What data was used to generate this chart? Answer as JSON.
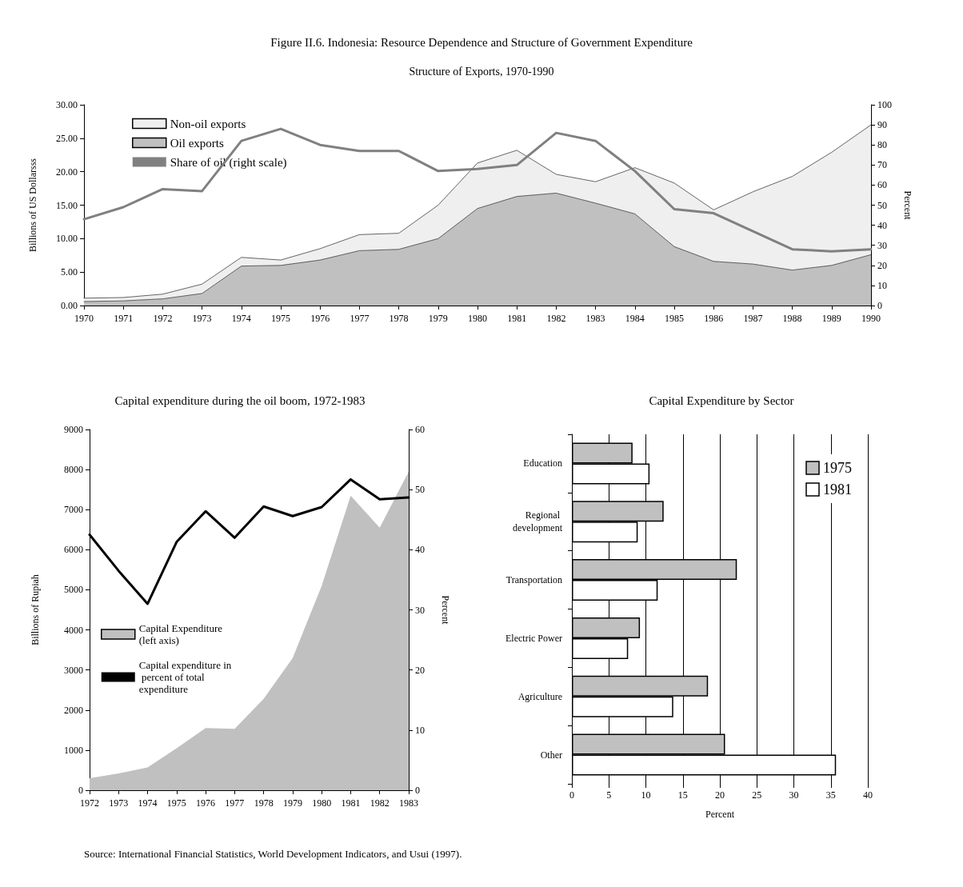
{
  "chart_data": [
    {
      "type": "area",
      "title": "Figure II.6. Indonesia: Resource Dependence and Structure of Government Expenditure",
      "subtitle": "Structure of Exports, 1970-1990",
      "ylabel": "Billions of US Dollarsss",
      "y2label": "Percent",
      "categories": [
        "1970",
        "1971",
        "1972",
        "1973",
        "1974",
        "1975",
        "1976",
        "1977",
        "1978",
        "1979",
        "1980",
        "1981",
        "1982",
        "1983",
        "1984",
        "1985",
        "1986",
        "1987",
        "1988",
        "1989",
        "1990"
      ],
      "stacked": true,
      "marker": "none",
      "legend": "top left",
      "ylim": [
        0,
        30
      ],
      "yticks": [
        {
          "value": 0,
          "label": "0.00"
        },
        {
          "value": 5,
          "label": "5.00"
        },
        {
          "value": 10,
          "label": "10.00"
        },
        {
          "value": 15,
          "label": "15.00"
        },
        {
          "value": 20,
          "label": "20.00"
        },
        {
          "value": 25,
          "label": "25.00"
        },
        {
          "value": 30,
          "label": "30.00"
        }
      ],
      "y2lim": [
        0,
        100
      ],
      "y2ticks": [
        0,
        10,
        20,
        30,
        40,
        50,
        60,
        70,
        80,
        90,
        100
      ],
      "series": [
        {
          "name": "Oil exports",
          "type": "area",
          "color": "#c0c0c0",
          "values": [
            0.6,
            0.7,
            1.0,
            1.8,
            5.9,
            6.0,
            6.8,
            8.2,
            8.4,
            10.0,
            14.5,
            16.3,
            16.8,
            15.3,
            13.7,
            8.8,
            6.6,
            6.2,
            5.3,
            6.0,
            7.6
          ]
        },
        {
          "name": "Non-oil exports",
          "type": "area",
          "color": "#efefef",
          "values": [
            0.5,
            0.5,
            0.7,
            1.4,
            1.3,
            0.8,
            1.7,
            2.4,
            2.4,
            5.0,
            6.8,
            6.9,
            2.8,
            3.2,
            6.9,
            9.5,
            7.7,
            10.8,
            14.0,
            16.9,
            19.4
          ]
        },
        {
          "name": "Share of oil (right scale)",
          "type": "line",
          "axis": "y2",
          "color": "#808080",
          "values": [
            43,
            49,
            58,
            57,
            82,
            88,
            80,
            77,
            77,
            67,
            68,
            70,
            86,
            82,
            67,
            48,
            46,
            37,
            28,
            27,
            28
          ]
        }
      ]
    },
    {
      "type": "area",
      "title": "Capital expenditure during the oil boom, 1972-1983",
      "ylabel": "Billions of Rupiah",
      "y2label": "Percent",
      "categories": [
        "1972",
        "1973",
        "1974",
        "1975",
        "1976",
        "1977",
        "1978",
        "1979",
        "1980",
        "1981",
        "1982",
        "1983"
      ],
      "marker": "none",
      "legend": "left",
      "ylim": [
        0,
        9000
      ],
      "yticks": [
        0,
        1000,
        2000,
        3000,
        4000,
        5000,
        6000,
        7000,
        8000,
        9000
      ],
      "y2lim": [
        0,
        60
      ],
      "y2ticks": [
        0,
        10,
        20,
        30,
        40,
        50,
        60
      ],
      "annotations": [
        "Source: International Financial Statistics, World Development Indicators, and Usui (1997)."
      ],
      "series": [
        {
          "name": "Capital Expenditure (left axis)",
          "type": "area",
          "color": "#c0c0c0",
          "values": [
            300,
            420,
            570,
            1050,
            1550,
            1530,
            2280,
            3300,
            5100,
            7350,
            6550,
            7950
          ]
        },
        {
          "name": "Capital expenditure in percent of total expenditure",
          "type": "line",
          "axis": "y2",
          "color": "#000000",
          "values": [
            42.5,
            36.5,
            31,
            41.3,
            46.4,
            42,
            47.2,
            45.6,
            47.1,
            51.7,
            48.4,
            48.7
          ]
        }
      ]
    },
    {
      "type": "bar",
      "orientation": "horizontal",
      "title": "Capital Expenditure by Sector",
      "xlabel": "Percent",
      "categories": [
        "Education",
        "Regional development",
        "Transportation",
        "Electric Power",
        "Agriculture",
        "Other"
      ],
      "xlim": [
        0,
        40
      ],
      "xticks": [
        0,
        5,
        10,
        15,
        20,
        25,
        30,
        35,
        40
      ],
      "grid": "x",
      "legend": "top right",
      "series": [
        {
          "name": "1975",
          "color": "#c0c0c0",
          "values": [
            8.2,
            12.4,
            22.3,
            9.2,
            18.4,
            20.7
          ]
        },
        {
          "name": "1981",
          "color": "#ffffff",
          "values": [
            10.5,
            8.9,
            11.6,
            7.6,
            13.7,
            35.7
          ]
        }
      ]
    }
  ]
}
